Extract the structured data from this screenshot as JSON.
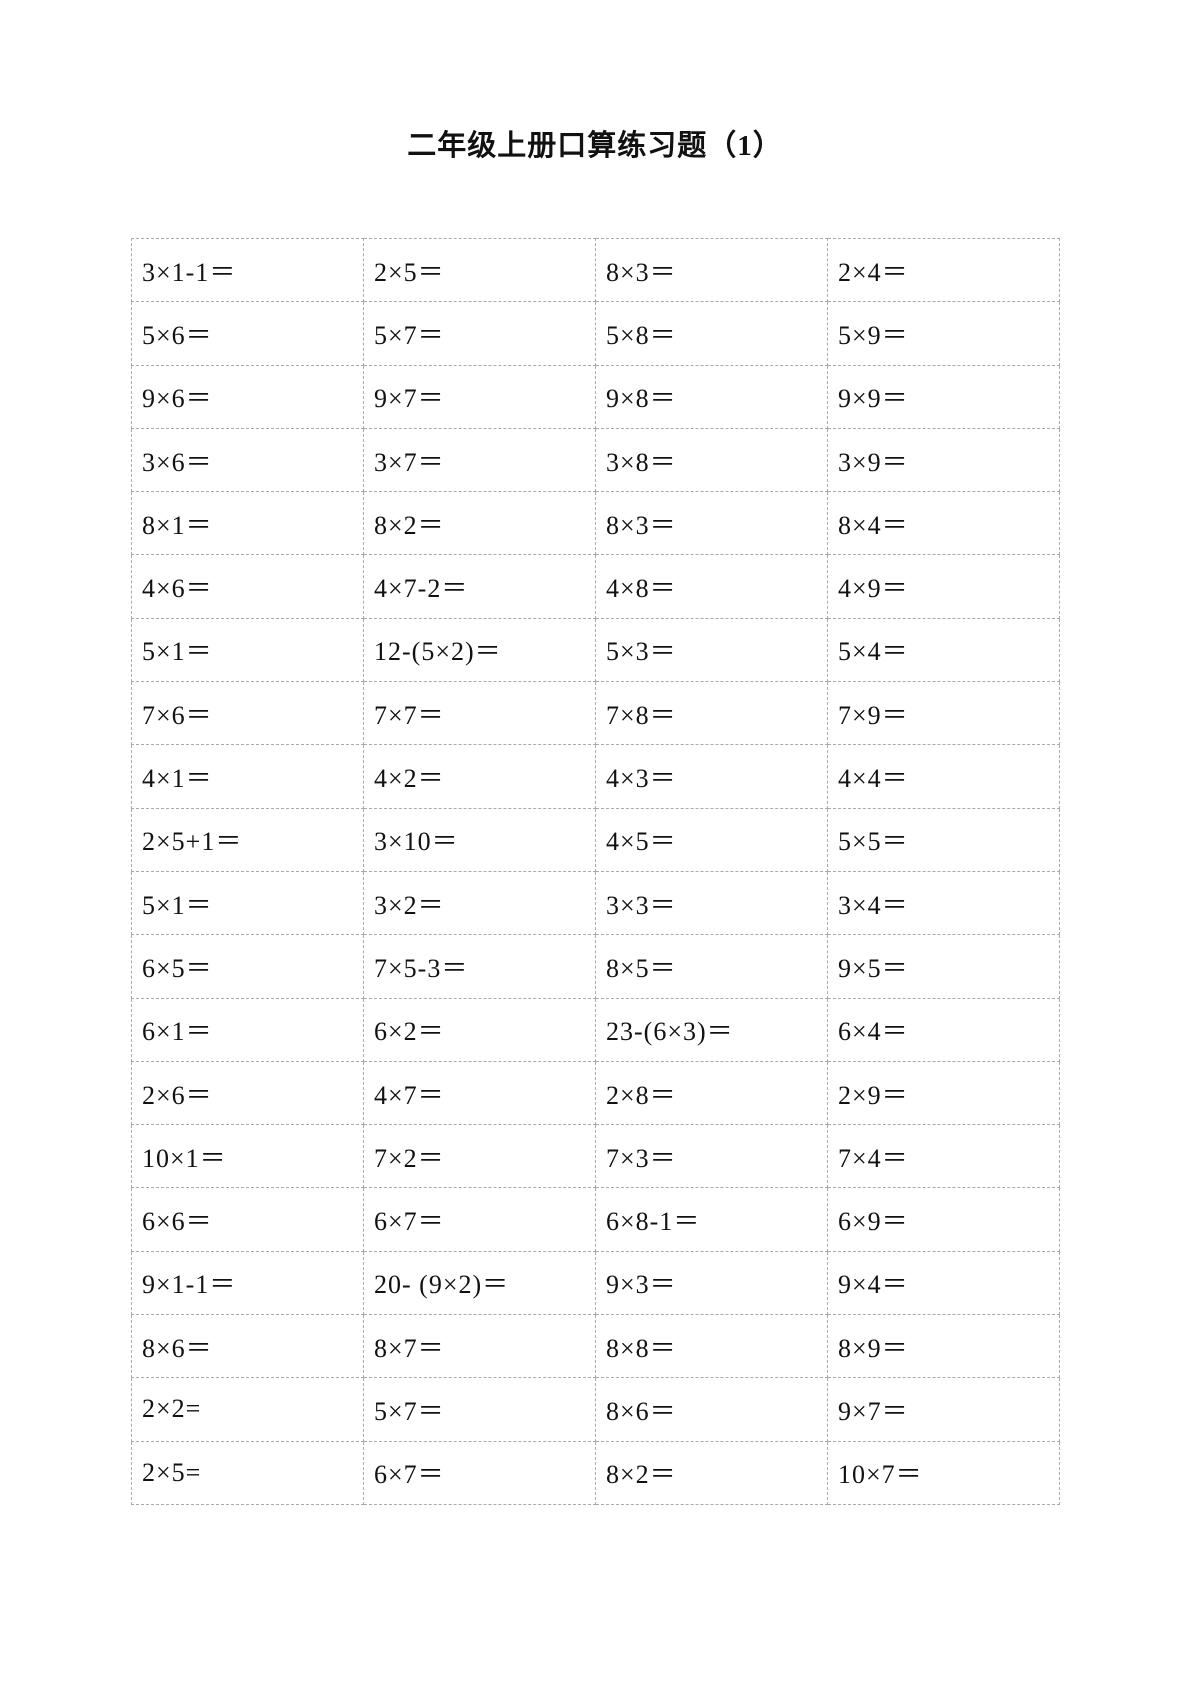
{
  "title": "二年级上册口算练习题（1）",
  "rows": [
    [
      "3×1-1＝",
      "2×5＝",
      "8×3＝",
      "2×4＝"
    ],
    [
      "5×6＝",
      "5×7＝",
      "5×8＝",
      "5×9＝"
    ],
    [
      "9×6＝",
      "9×7＝",
      "9×8＝",
      "9×9＝"
    ],
    [
      "3×6＝",
      "3×7＝",
      "3×8＝",
      "3×9＝"
    ],
    [
      "8×1＝",
      "8×2＝",
      "8×3＝",
      "8×4＝"
    ],
    [
      "4×6＝",
      "4×7-2＝",
      "4×8＝",
      "4×9＝"
    ],
    [
      "5×1＝",
      "12-(5×2)＝",
      "5×3＝",
      "5×4＝"
    ],
    [
      "7×6＝",
      "7×7＝",
      "7×8＝",
      "7×9＝"
    ],
    [
      "4×1＝",
      "4×2＝",
      "4×3＝",
      "4×4＝"
    ],
    [
      "2×5+1＝",
      "3×10＝",
      "4×5＝",
      "5×5＝"
    ],
    [
      "5×1＝",
      "3×2＝",
      "3×3＝",
      "3×4＝"
    ],
    [
      "6×5＝",
      "7×5-3＝",
      "8×5＝",
      "9×5＝"
    ],
    [
      "6×1＝",
      "6×2＝",
      "23-(6×3)＝",
      "6×4＝"
    ],
    [
      "2×6＝",
      "4×7＝",
      "2×8＝",
      "2×9＝"
    ],
    [
      "10×1＝",
      "7×2＝",
      "7×3＝",
      "7×4＝"
    ],
    [
      "6×6＝",
      "6×7＝",
      "6×8-1＝",
      "6×9＝"
    ],
    [
      "9×1-1＝",
      "20- (9×2)＝",
      "9×3＝",
      "9×4＝"
    ],
    [
      "8×6＝",
      "8×7＝",
      "8×8＝",
      "8×9＝"
    ],
    [
      "2×2=",
      "5×7＝",
      "8×6＝",
      "9×7＝"
    ],
    [
      "2×5=",
      "6×7＝",
      "8×2＝",
      "10×7＝"
    ]
  ]
}
